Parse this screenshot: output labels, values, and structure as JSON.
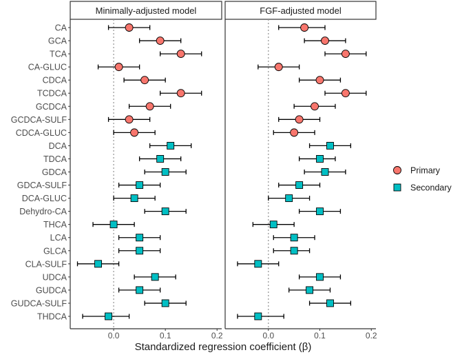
{
  "chart_data": {
    "type": "forest",
    "xlabel": "Standardized regression coefficient (β)",
    "xlim": [
      -0.084,
      0.209
    ],
    "xticks": [
      0.0,
      0.1,
      0.2
    ],
    "xtick_labels": [
      "0.0",
      "0.1",
      "0.2"
    ],
    "reference_line": 0,
    "grid": false,
    "legend_position": "right",
    "legend": [
      {
        "name": "Primary",
        "color": "#F8766D",
        "shape": "circle"
      },
      {
        "name": "Secondary",
        "color": "#00BFC4",
        "shape": "square"
      }
    ],
    "categories": [
      "CA",
      "GCA",
      "TCA",
      "CA-GLUC",
      "CDCA",
      "TCDCA",
      "GCDCA",
      "GCDCA-SULF",
      "CDCA-GLUC",
      "DCA",
      "TDCA",
      "GDCA",
      "GDCA-SULF",
      "DCA-GLUC",
      "Dehydro-CA",
      "THCA",
      "LCA",
      "GLCA",
      "CLA-SULF",
      "UDCA",
      "GUDCA",
      "GUDCA-SULF",
      "THDCA"
    ],
    "group": [
      "Primary",
      "Primary",
      "Primary",
      "Primary",
      "Primary",
      "Primary",
      "Primary",
      "Primary",
      "Primary",
      "Secondary",
      "Secondary",
      "Secondary",
      "Secondary",
      "Secondary",
      "Secondary",
      "Secondary",
      "Secondary",
      "Secondary",
      "Secondary",
      "Secondary",
      "Secondary",
      "Secondary",
      "Secondary"
    ],
    "panels": [
      {
        "title": "Minimally-adjusted model",
        "estimate": [
          0.03,
          0.09,
          0.13,
          0.01,
          0.06,
          0.13,
          0.07,
          0.03,
          0.04,
          0.11,
          0.09,
          0.1,
          0.05,
          0.04,
          0.1,
          0.0,
          0.05,
          0.05,
          -0.03,
          0.08,
          0.05,
          0.1,
          -0.01
        ],
        "lower": [
          -0.01,
          0.05,
          0.09,
          -0.03,
          0.02,
          0.09,
          0.03,
          -0.01,
          0.0,
          0.07,
          0.05,
          0.06,
          0.01,
          0.0,
          0.06,
          -0.04,
          0.01,
          0.01,
          -0.07,
          0.04,
          0.01,
          0.06,
          -0.06
        ],
        "upper": [
          0.07,
          0.13,
          0.17,
          0.05,
          0.1,
          0.17,
          0.11,
          0.07,
          0.08,
          0.15,
          0.13,
          0.14,
          0.09,
          0.08,
          0.14,
          0.04,
          0.09,
          0.09,
          0.01,
          0.12,
          0.09,
          0.14,
          0.03
        ]
      },
      {
        "title": "FGF-adjusted model",
        "estimate": [
          0.07,
          0.11,
          0.15,
          0.02,
          0.1,
          0.15,
          0.09,
          0.06,
          0.05,
          0.12,
          0.1,
          0.11,
          0.06,
          0.04,
          0.1,
          0.01,
          0.05,
          0.05,
          -0.02,
          0.1,
          0.08,
          0.12,
          -0.02
        ],
        "lower": [
          0.02,
          0.07,
          0.11,
          -0.02,
          0.06,
          0.11,
          0.05,
          0.02,
          0.01,
          0.08,
          0.06,
          0.07,
          0.02,
          0.0,
          0.06,
          -0.03,
          0.01,
          0.01,
          -0.06,
          0.06,
          0.04,
          0.08,
          -0.06
        ],
        "upper": [
          0.11,
          0.15,
          0.19,
          0.06,
          0.14,
          0.19,
          0.13,
          0.1,
          0.09,
          0.16,
          0.13,
          0.15,
          0.1,
          0.08,
          0.14,
          0.05,
          0.09,
          0.08,
          0.02,
          0.14,
          0.12,
          0.16,
          0.03
        ]
      }
    ]
  }
}
